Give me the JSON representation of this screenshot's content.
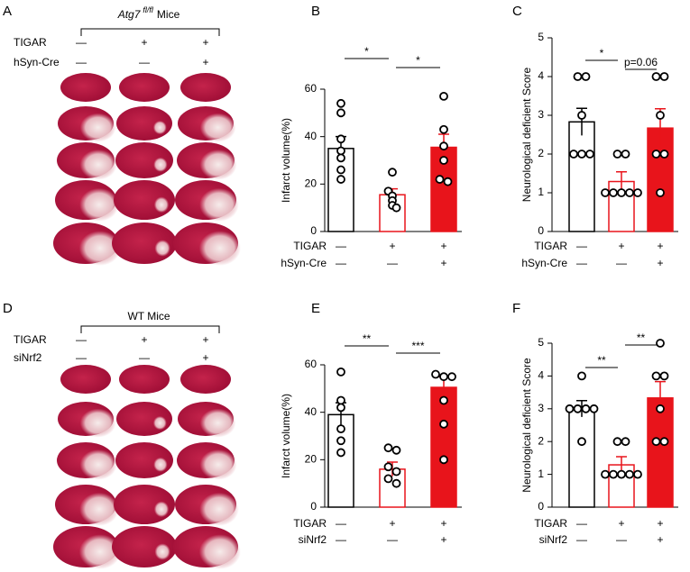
{
  "panels": [
    {
      "letter": "A",
      "group": "Atg7",
      "group_sup": "fl/fl",
      "group_tail": "Mice",
      "conditions": [
        {
          "name": "TIGAR",
          "signs": [
            "—",
            "+",
            "+"
          ]
        },
        {
          "name": "hSyn-Cre",
          "signs": [
            "—",
            "—",
            "+"
          ]
        }
      ]
    },
    {
      "letter": "D",
      "group": "WT Mice",
      "conditions": [
        {
          "name": "TIGAR",
          "signs": [
            "—",
            "+",
            "+"
          ]
        },
        {
          "name": "siNrf2",
          "signs": [
            "—",
            "—",
            "+"
          ]
        }
      ]
    }
  ],
  "chart_data": [
    {
      "type": "bar",
      "letter": "B",
      "ylabel": "Infarct volume(%)",
      "conditions": [
        {
          "name": "TIGAR",
          "signs": [
            "—",
            "+",
            "+"
          ]
        },
        {
          "name": "hSyn-Cre",
          "signs": [
            "—",
            "—",
            "+"
          ]
        }
      ],
      "values": [
        35,
        15.5,
        35.5
      ],
      "errors": [
        5,
        2.5,
        5.5
      ],
      "points": [
        [
          54,
          50,
          39,
          34,
          31,
          26,
          22
        ],
        [
          25,
          17,
          15,
          13,
          11,
          10
        ],
        [
          57,
          43,
          36,
          30,
          22,
          21
        ]
      ],
      "bar_fills": [
        "#ffffff",
        "#ffffff",
        "#e8141b"
      ],
      "bar_edges": [
        "#000000",
        "#e8141b",
        "#e8141b"
      ],
      "comparisons": [
        "*",
        "*"
      ],
      "ylim": [
        0,
        60
      ],
      "yticks": [
        0,
        20,
        40,
        60
      ]
    },
    {
      "type": "bar",
      "letter": "C",
      "ylabel": "Neurological deficient Score",
      "conditions": [
        {
          "name": "TIGAR",
          "signs": [
            "—",
            "+",
            "+"
          ]
        },
        {
          "name": "hSyn-Cre",
          "signs": [
            "—",
            "—",
            "+"
          ]
        }
      ],
      "values": [
        2.83,
        1.29,
        2.67
      ],
      "errors": [
        0.35,
        0.25,
        0.5
      ],
      "points": [
        [
          4,
          4,
          3,
          2,
          2,
          2
        ],
        [
          2,
          2,
          1,
          1,
          1,
          1,
          1
        ],
        [
          4,
          4,
          3,
          2,
          2,
          1
        ]
      ],
      "bar_fills": [
        "#ffffff",
        "#ffffff",
        "#e8141b"
      ],
      "bar_edges": [
        "#000000",
        "#e8141b",
        "#e8141b"
      ],
      "comparisons": [
        "*",
        "p=0.06"
      ],
      "ylim": [
        0,
        5
      ],
      "yticks": [
        0,
        1,
        2,
        3,
        4,
        5
      ]
    },
    {
      "type": "bar",
      "letter": "E",
      "ylabel": "Infarct volume(%)",
      "conditions": [
        {
          "name": "TIGAR",
          "signs": [
            "—",
            "+",
            "+"
          ]
        },
        {
          "name": "siNrf2",
          "signs": [
            "—",
            "—",
            "+"
          ]
        }
      ],
      "values": [
        39,
        16,
        50.5
      ],
      "errors": [
        5,
        3,
        4.5
      ],
      "points": [
        [
          57,
          45,
          42,
          33,
          28,
          23
        ],
        [
          25,
          24,
          17,
          15,
          12,
          10
        ],
        [
          56,
          55,
          55,
          45,
          35,
          20
        ]
      ],
      "bar_fills": [
        "#ffffff",
        "#ffffff",
        "#e8141b"
      ],
      "bar_edges": [
        "#000000",
        "#e8141b",
        "#e8141b"
      ],
      "comparisons": [
        "**",
        "***"
      ],
      "ylim": [
        0,
        60
      ],
      "yticks": [
        0,
        20,
        40,
        60
      ]
    },
    {
      "type": "bar",
      "letter": "F",
      "ylabel": "Neurological deficient Score",
      "conditions": [
        {
          "name": "TIGAR",
          "signs": [
            "—",
            "+",
            "+"
          ]
        },
        {
          "name": "siNrf2",
          "signs": [
            "—",
            "—",
            "+"
          ]
        }
      ],
      "values": [
        3.0,
        1.29,
        3.33
      ],
      "errors": [
        0.25,
        0.25,
        0.5
      ],
      "points": [
        [
          4,
          3,
          3,
          3,
          3,
          2
        ],
        [
          2,
          2,
          1,
          1,
          1,
          1,
          1
        ],
        [
          5,
          4,
          4,
          3,
          2,
          2
        ]
      ],
      "bar_fills": [
        "#ffffff",
        "#ffffff",
        "#e8141b"
      ],
      "bar_edges": [
        "#000000",
        "#e8141b",
        "#e8141b"
      ],
      "comparisons": [
        "**",
        "**"
      ],
      "ylim": [
        0,
        5
      ],
      "yticks": [
        0,
        1,
        2,
        3,
        4,
        5
      ]
    }
  ]
}
